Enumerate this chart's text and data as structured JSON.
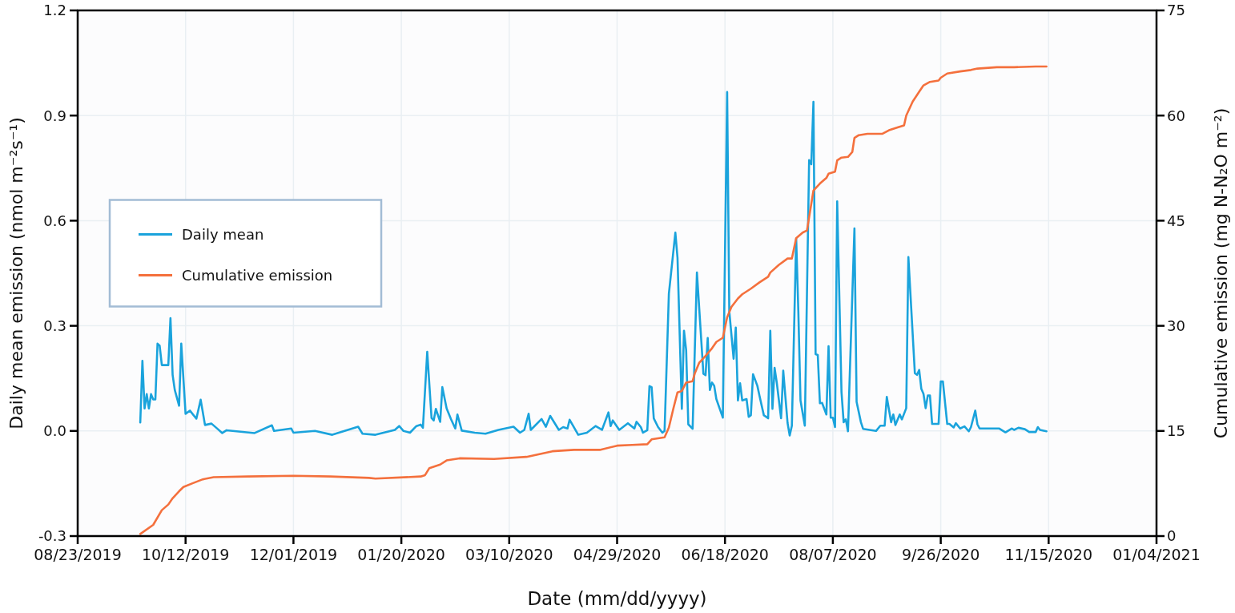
{
  "chart_data": {
    "type": "line",
    "xlabel": "Date (mm/dd/yyyy)",
    "ylabel": "Daily mean emission (nmol m⁻²s⁻¹)",
    "y2label": "Cumulative emission (mg N-N₂O m⁻²)",
    "xlim": [
      "2019-08-23",
      "2021-01-04"
    ],
    "xticks": [
      {
        "value": "2019-08-23",
        "label": "08/23/2019"
      },
      {
        "value": "2019-10-12",
        "label": "10/12/2019"
      },
      {
        "value": "2019-12-01",
        "label": "12/01/2019"
      },
      {
        "value": "2020-01-20",
        "label": "01/20/2020"
      },
      {
        "value": "2020-03-10",
        "label": "03/10/2020"
      },
      {
        "value": "2020-04-29",
        "label": "04/29/2020"
      },
      {
        "value": "2020-06-18",
        "label": "06/18/2020"
      },
      {
        "value": "2020-08-07",
        "label": "08/07/2020"
      },
      {
        "value": "2020-09-26",
        "label": "9/26/2020"
      },
      {
        "value": "2020-11-15",
        "label": "11/15/2020"
      },
      {
        "value": "2021-01-04",
        "label": "01/04/2021"
      }
    ],
    "ylim": [
      -0.3,
      1.2
    ],
    "yticks": [
      -0.3,
      {
        "value": 0,
        "label": "0.0"
      },
      0.3,
      0.6,
      0.9,
      1.2
    ],
    "y2lim": [
      0,
      75
    ],
    "y2ticks": [
      0,
      15,
      30,
      45,
      60,
      75
    ],
    "grid": true,
    "legend": "left",
    "series": [
      {
        "name": "Daily mean",
        "color": "#1aa3dc",
        "x": [
          "2019-09-21",
          "2019-09-22",
          "2019-09-23",
          "2019-09-24",
          "2019-09-25",
          "2019-09-26",
          "2019-09-27",
          "2019-09-28",
          "2019-09-29",
          "2019-09-30",
          "2019-10-01",
          "2019-10-04",
          "2019-10-05",
          "2019-10-06",
          "2019-10-07",
          "2019-10-09",
          "2019-10-10",
          "2019-10-12",
          "2019-10-14",
          "2019-10-17",
          "2019-10-19",
          "2019-10-21",
          "2019-10-24",
          "2019-10-27",
          "2019-10-29",
          "2019-10-31",
          "2019-11-13",
          "2019-11-21",
          "2019-11-22",
          "2019-11-30",
          "2019-12-01",
          "2019-12-11",
          "2019-12-19",
          "2019-12-31",
          "2020-01-02",
          "2020-01-08",
          "2020-01-17",
          "2020-01-19",
          "2020-01-21",
          "2020-01-24",
          "2020-01-27",
          "2020-01-29",
          "2020-01-30",
          "2020-02-01",
          "2020-02-03",
          "2020-02-04",
          "2020-02-05",
          "2020-02-07",
          "2020-02-08",
          "2020-02-10",
          "2020-02-12",
          "2020-02-14",
          "2020-02-15",
          "2020-02-17",
          "2020-02-23",
          "2020-02-28",
          "2020-03-05",
          "2020-03-12",
          "2020-03-15",
          "2020-03-17",
          "2020-03-19",
          "2020-03-20",
          "2020-03-25",
          "2020-03-27",
          "2020-03-29",
          "2020-04-02",
          "2020-04-04",
          "2020-04-06",
          "2020-04-07",
          "2020-04-11",
          "2020-04-15",
          "2020-04-19",
          "2020-04-22",
          "2020-04-25",
          "2020-04-26",
          "2020-04-27",
          "2020-04-30",
          "2020-05-04",
          "2020-05-07",
          "2020-05-08",
          "2020-05-10",
          "2020-05-11",
          "2020-05-13",
          "2020-05-14",
          "2020-05-15",
          "2020-05-16",
          "2020-05-18",
          "2020-05-20",
          "2020-05-21",
          "2020-05-23",
          "2020-05-26",
          "2020-05-27",
          "2020-05-29",
          "2020-05-30",
          "2020-05-31",
          "2020-06-01",
          "2020-06-03",
          "2020-06-05",
          "2020-06-08",
          "2020-06-09",
          "2020-06-10",
          "2020-06-11",
          "2020-06-12",
          "2020-06-13",
          "2020-06-14",
          "2020-06-17",
          "2020-06-19",
          "2020-06-20",
          "2020-06-22",
          "2020-06-23",
          "2020-06-24",
          "2020-06-25",
          "2020-06-26",
          "2020-06-28",
          "2020-06-29",
          "2020-06-30",
          "2020-07-01",
          "2020-07-03",
          "2020-07-04",
          "2020-07-06",
          "2020-07-08",
          "2020-07-09",
          "2020-07-10",
          "2020-07-11",
          "2020-07-12",
          "2020-07-14",
          "2020-07-15",
          "2020-07-17",
          "2020-07-18",
          "2020-07-19",
          "2020-07-21",
          "2020-07-22",
          "2020-07-23",
          "2020-07-25",
          "2020-07-27",
          "2020-07-28",
          "2020-07-29",
          "2020-07-30",
          "2020-07-31",
          "2020-08-01",
          "2020-08-02",
          "2020-08-04",
          "2020-08-05",
          "2020-08-06",
          "2020-08-07",
          "2020-08-08",
          "2020-08-09",
          "2020-08-11",
          "2020-08-12",
          "2020-08-13",
          "2020-08-14",
          "2020-08-17",
          "2020-08-18",
          "2020-08-20",
          "2020-08-21",
          "2020-08-27",
          "2020-08-29",
          "2020-08-31",
          "2020-09-01",
          "2020-09-03",
          "2020-09-04",
          "2020-09-05",
          "2020-09-07",
          "2020-09-08",
          "2020-09-10",
          "2020-09-11",
          "2020-09-14",
          "2020-09-15",
          "2020-09-16",
          "2020-09-17",
          "2020-09-18",
          "2020-09-19",
          "2020-09-20",
          "2020-09-21",
          "2020-09-22",
          "2020-09-25",
          "2020-09-26",
          "2020-09-27",
          "2020-09-29",
          "2020-09-30",
          "2020-10-02",
          "2020-10-03",
          "2020-10-05",
          "2020-10-07",
          "2020-10-09",
          "2020-10-10",
          "2020-10-12",
          "2020-10-13",
          "2020-10-14",
          "2020-10-23",
          "2020-10-26",
          "2020-10-29",
          "2020-10-30",
          "2020-11-01",
          "2020-11-04",
          "2020-11-06",
          "2020-11-09",
          "2020-11-10",
          "2020-11-11",
          "2020-11-14"
        ],
        "values": [
          0.024,
          0.2,
          0.064,
          0.105,
          0.064,
          0.105,
          0.09,
          0.09,
          0.249,
          0.243,
          0.188,
          0.188,
          0.322,
          0.16,
          0.117,
          0.072,
          0.249,
          0.049,
          0.058,
          0.035,
          0.089,
          0.017,
          0.021,
          0.005,
          -0.006,
          0.002,
          -0.006,
          0.016,
          0.0,
          0.007,
          -0.005,
          0.0,
          -0.011,
          0.012,
          -0.008,
          -0.011,
          0.003,
          0.014,
          0.0,
          -0.005,
          0.014,
          0.018,
          0.009,
          0.226,
          0.037,
          0.03,
          0.063,
          0.026,
          0.125,
          0.064,
          0.034,
          0.007,
          0.047,
          0.001,
          -0.005,
          -0.008,
          0.003,
          0.012,
          -0.005,
          0.003,
          0.049,
          0.003,
          0.034,
          0.012,
          0.043,
          0.003,
          0.011,
          0.007,
          0.032,
          -0.011,
          -0.005,
          0.014,
          0.003,
          0.053,
          0.014,
          0.03,
          0.003,
          0.022,
          0.007,
          0.026,
          0.011,
          -0.005,
          0.002,
          0.128,
          0.125,
          0.036,
          0.011,
          -0.005,
          0.0,
          0.392,
          0.566,
          0.494,
          0.063,
          0.286,
          0.231,
          0.019,
          0.006,
          0.452,
          0.163,
          0.159,
          0.265,
          0.117,
          0.138,
          0.129,
          0.091,
          0.038,
          0.967,
          0.341,
          0.206,
          0.295,
          0.087,
          0.136,
          0.087,
          0.091,
          0.04,
          0.045,
          0.162,
          0.129,
          0.1,
          0.045,
          0.036,
          0.286,
          0.063,
          0.18,
          0.138,
          0.036,
          0.172,
          0.023,
          -0.013,
          0.015,
          0.549,
          0.341,
          0.087,
          0.015,
          0.773,
          0.761,
          0.939,
          0.219,
          0.217,
          0.079,
          0.08,
          0.047,
          0.242,
          0.038,
          0.038,
          0.011,
          0.655,
          0.111,
          0.025,
          0.033,
          -0.001,
          0.578,
          0.083,
          0.025,
          0.006,
          0.0,
          0.015,
          0.015,
          0.097,
          0.025,
          0.047,
          0.017,
          0.047,
          0.033,
          0.065,
          0.496,
          0.165,
          0.16,
          0.174,
          0.12,
          0.106,
          0.065,
          0.101,
          0.101,
          0.02,
          0.02,
          0.141,
          0.141,
          0.02,
          0.02,
          0.01,
          0.022,
          0.007,
          0.013,
          -0.001,
          0.011,
          0.058,
          0.019,
          0.007,
          0.007,
          -0.004,
          0.007,
          0.003,
          0.009,
          0.005,
          -0.003,
          -0.003,
          0.011,
          0.003,
          -0.001
        ]
      },
      {
        "name": "Cumulative emission",
        "color": "#f4703d",
        "axis": "y2",
        "x": [
          "2019-09-21",
          "2019-09-27",
          "2019-10-01",
          "2019-10-04",
          "2019-10-06",
          "2019-10-09",
          "2019-10-11",
          "2019-10-15",
          "2019-10-20",
          "2019-10-25",
          "2019-11-10",
          "2019-12-01",
          "2019-12-18",
          "2020-01-05",
          "2020-01-08",
          "2020-01-29",
          "2020-01-31",
          "2020-02-02",
          "2020-02-07",
          "2020-02-10",
          "2020-02-16",
          "2020-03-03",
          "2020-03-18",
          "2020-03-30",
          "2020-04-09",
          "2020-04-21",
          "2020-04-29",
          "2020-05-06",
          "2020-05-13",
          "2020-05-15",
          "2020-05-21",
          "2020-05-23",
          "2020-05-25",
          "2020-05-27",
          "2020-05-29",
          "2020-05-31",
          "2020-06-03",
          "2020-06-04",
          "2020-06-06",
          "2020-06-09",
          "2020-06-12",
          "2020-06-14",
          "2020-06-17",
          "2020-06-19",
          "2020-06-21",
          "2020-06-24",
          "2020-06-26",
          "2020-06-30",
          "2020-07-04",
          "2020-07-07",
          "2020-07-08",
          "2020-07-09",
          "2020-07-13",
          "2020-07-17",
          "2020-07-19",
          "2020-07-21",
          "2020-07-24",
          "2020-07-26",
          "2020-07-29",
          "2020-08-01",
          "2020-08-04",
          "2020-08-05",
          "2020-08-08",
          "2020-08-09",
          "2020-08-11",
          "2020-08-14",
          "2020-08-16",
          "2020-08-17",
          "2020-08-19",
          "2020-08-23",
          "2020-08-30",
          "2020-09-02",
          "2020-09-06",
          "2020-09-09",
          "2020-09-10",
          "2020-09-13",
          "2020-09-16",
          "2020-09-18",
          "2020-09-21",
          "2020-09-25",
          "2020-09-26",
          "2020-09-29",
          "2020-10-05",
          "2020-10-10",
          "2020-10-13",
          "2020-10-22",
          "2020-10-30",
          "2020-11-09",
          "2020-11-14"
        ],
        "values": [
          0.3,
          1.6,
          3.7,
          4.5,
          5.4,
          6.4,
          7.0,
          7.5,
          8.1,
          8.4,
          8.5,
          8.6,
          8.5,
          8.3,
          8.2,
          8.5,
          8.7,
          9.7,
          10.2,
          10.8,
          11.1,
          11.0,
          11.3,
          12.1,
          12.3,
          12.3,
          12.9,
          13.0,
          13.1,
          13.8,
          14.1,
          15.5,
          18.1,
          20.5,
          20.7,
          21.9,
          22.1,
          23.2,
          24.7,
          25.7,
          26.8,
          27.7,
          28.3,
          31.2,
          32.7,
          33.9,
          34.5,
          35.3,
          36.2,
          36.8,
          37.0,
          37.6,
          38.7,
          39.6,
          39.6,
          42.5,
          43.3,
          43.6,
          49.3,
          50.3,
          51.1,
          51.7,
          52.0,
          53.6,
          54.0,
          54.1,
          54.8,
          56.8,
          57.2,
          57.4,
          57.4,
          57.9,
          58.3,
          58.6,
          60.0,
          62.0,
          63.4,
          64.3,
          64.8,
          65.0,
          65.4,
          66.0,
          66.3,
          66.5,
          66.7,
          66.9,
          66.9,
          67.0,
          67.0
        ]
      }
    ]
  }
}
